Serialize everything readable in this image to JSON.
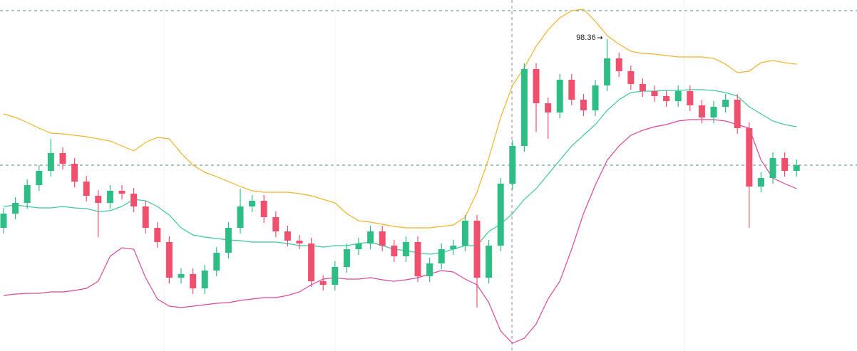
{
  "chart_data": {
    "type": "candlestick",
    "ylim": [
      93.98,
      98.91
    ],
    "up_color": "#2ebd85",
    "down_color": "#f0506e",
    "open": [
      95.71,
      95.91,
      96.06,
      96.31,
      96.51,
      96.76,
      96.61,
      96.36,
      96.16,
      96.06,
      96.23,
      96.19,
      96.01,
      95.71,
      95.51,
      95.01,
      95.06,
      94.86,
      95.11,
      95.36,
      95.71,
      96.01,
      96.09,
      95.86,
      95.66,
      95.53,
      95.49,
      94.96,
      94.91,
      95.16,
      95.41,
      95.49,
      95.66,
      95.46,
      95.31,
      95.51,
      95.03,
      95.21,
      95.41,
      95.46,
      95.81,
      95.01,
      95.46,
      96.33,
      96.86,
      97.94,
      97.46,
      97.33,
      97.79,
      97.51,
      97.36,
      97.71,
      98.09,
      97.91,
      97.73,
      97.63,
      97.56,
      97.49,
      97.63,
      97.43,
      97.26,
      97.41,
      97.51,
      97.11,
      96.29,
      96.41,
      96.69,
      96.51
    ],
    "high": [
      95.99,
      96.14,
      96.39,
      96.59,
      96.96,
      96.84,
      96.69,
      96.44,
      96.24,
      96.31,
      96.31,
      96.27,
      96.09,
      95.79,
      95.59,
      95.14,
      95.14,
      95.19,
      95.44,
      95.79,
      96.26,
      96.17,
      96.17,
      95.94,
      95.74,
      95.61,
      95.57,
      95.04,
      95.24,
      95.49,
      95.57,
      95.74,
      95.74,
      95.54,
      95.59,
      95.59,
      95.29,
      95.49,
      95.54,
      95.89,
      95.89,
      95.54,
      96.41,
      96.94,
      98.02,
      98.02,
      97.54,
      97.87,
      97.87,
      97.59,
      97.79,
      98.36,
      98.17,
      97.99,
      97.81,
      97.71,
      97.64,
      97.71,
      97.71,
      97.51,
      97.49,
      97.59,
      97.59,
      97.19,
      96.49,
      96.77,
      96.77,
      96.67
    ],
    "low": [
      95.63,
      95.83,
      95.98,
      96.23,
      96.43,
      96.53,
      96.28,
      96.08,
      95.58,
      95.98,
      96.11,
      95.93,
      95.63,
      95.43,
      94.93,
      94.93,
      94.78,
      94.78,
      95.03,
      95.28,
      95.63,
      95.93,
      95.78,
      95.58,
      95.45,
      95.41,
      94.88,
      94.83,
      94.83,
      95.08,
      95.33,
      95.41,
      95.38,
      95.23,
      95.23,
      94.95,
      94.95,
      95.13,
      95.33,
      95.38,
      94.59,
      94.93,
      95.38,
      96.25,
      96.78,
      97.06,
      96.96,
      97.25,
      97.43,
      97.28,
      97.28,
      97.63,
      97.83,
      97.65,
      97.55,
      97.48,
      97.41,
      97.41,
      97.35,
      97.18,
      97.18,
      97.33,
      97.03,
      95.71,
      96.21,
      96.33,
      96.43,
      96.43
    ],
    "close": [
      95.91,
      96.06,
      96.31,
      96.51,
      96.76,
      96.61,
      96.36,
      96.16,
      96.06,
      96.23,
      96.19,
      96.01,
      95.71,
      95.51,
      95.01,
      95.06,
      94.86,
      95.11,
      95.36,
      95.71,
      96.01,
      96.09,
      95.86,
      95.66,
      95.53,
      95.49,
      94.96,
      94.91,
      95.16,
      95.41,
      95.49,
      95.66,
      95.46,
      95.31,
      95.51,
      95.03,
      95.21,
      95.41,
      95.46,
      95.81,
      95.01,
      95.46,
      96.33,
      96.86,
      97.94,
      97.46,
      97.33,
      97.79,
      97.51,
      97.36,
      97.71,
      98.09,
      97.91,
      97.73,
      97.63,
      97.56,
      97.49,
      97.63,
      97.43,
      97.26,
      97.41,
      97.51,
      97.11,
      96.29,
      96.41,
      96.69,
      96.51,
      96.59
    ],
    "bands": [
      {
        "color": "#f0b429",
        "values": [
          97.31,
          97.26,
          97.19,
          97.11,
          97.04,
          97.03,
          97.01,
          96.99,
          96.96,
          96.93,
          96.86,
          96.79,
          96.91,
          96.98,
          96.96,
          96.76,
          96.59,
          96.49,
          96.43,
          96.36,
          96.29,
          96.23,
          96.21,
          96.21,
          96.21,
          96.19,
          96.16,
          96.11,
          96.06,
          95.91,
          95.81,
          95.79,
          95.76,
          95.73,
          95.71,
          95.71,
          95.71,
          95.73,
          95.75,
          95.86,
          96.21,
          96.69,
          97.26,
          97.71,
          97.96,
          98.26,
          98.49,
          98.66,
          98.76,
          98.78,
          98.61,
          98.41,
          98.29,
          98.19,
          98.16,
          98.15,
          98.13,
          98.11,
          98.11,
          98.11,
          98.09,
          98.01,
          97.89,
          97.91,
          98.03,
          98.06,
          98.03,
          98.01
        ]
      },
      {
        "color": "#3cc8a0",
        "values": [
          96.01,
          96.03,
          96.01,
          95.99,
          95.99,
          96.01,
          95.99,
          95.98,
          95.94,
          95.95,
          96.01,
          96.11,
          96.09,
          96.01,
          95.89,
          95.71,
          95.61,
          95.58,
          95.56,
          95.54,
          95.53,
          95.51,
          95.51,
          95.51,
          95.49,
          95.46,
          95.46,
          95.44,
          95.46,
          95.46,
          95.49,
          95.51,
          95.46,
          95.41,
          95.39,
          95.36,
          95.34,
          95.36,
          95.41,
          95.46,
          95.46,
          95.66,
          95.76,
          95.91,
          96.11,
          96.26,
          96.46,
          96.66,
          96.86,
          97.01,
          97.16,
          97.36,
          97.51,
          97.61,
          97.63,
          97.63,
          97.64,
          97.64,
          97.65,
          97.65,
          97.64,
          97.61,
          97.56,
          97.41,
          97.31,
          97.21,
          97.16,
          97.13
        ]
      },
      {
        "color": "#d9479c",
        "values": [
          94.76,
          94.78,
          94.79,
          94.79,
          94.81,
          94.81,
          94.83,
          94.86,
          94.96,
          95.31,
          95.43,
          95.41,
          95.01,
          94.71,
          94.61,
          94.59,
          94.61,
          94.63,
          94.65,
          94.66,
          94.69,
          94.71,
          94.73,
          94.73,
          94.76,
          94.81,
          94.91,
          94.99,
          95.01,
          94.99,
          94.99,
          95.01,
          94.98,
          94.96,
          94.98,
          95.01,
          95.06,
          95.11,
          95.09,
          94.99,
          94.91,
          94.66,
          94.26,
          94.09,
          94.16,
          94.36,
          94.71,
          94.96,
          95.41,
          95.91,
          96.31,
          96.66,
          96.86,
          97.01,
          97.08,
          97.13,
          97.16,
          97.21,
          97.23,
          97.23,
          97.23,
          97.21,
          97.16,
          97.11,
          96.66,
          96.41,
          96.33,
          96.26
        ]
      }
    ]
  }
}
